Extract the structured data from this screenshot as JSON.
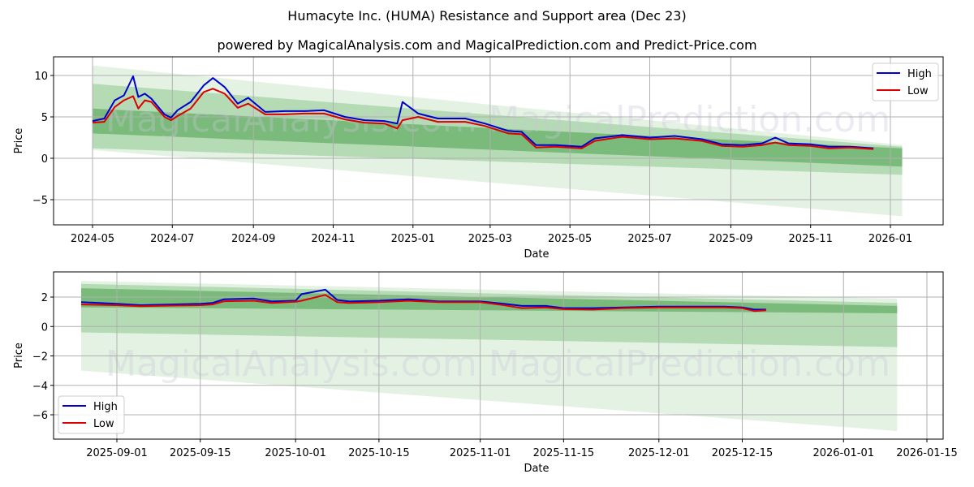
{
  "title": "Humacyte Inc. (HUMA) Resistance and Support area (Dec 23)",
  "subtitle": "powered by MagicalAnalysis.com and MagicalPrediction.com and Predict-Price.com",
  "watermarks": [
    "MagicalAnalysis.com",
    "MagicalPrediction.com"
  ],
  "colors": {
    "high": "#0000cc",
    "low": "#dd0000",
    "band_dark": "#4a9e4a",
    "band_mid": "#8cc98c",
    "band_light": "#d2ead2"
  },
  "legend": {
    "high": "High",
    "low": "Low"
  },
  "chart_data": [
    {
      "type": "line",
      "title": "Humacyte Inc. (HUMA) Resistance and Support area (Dec 23)",
      "xlabel": "Date",
      "ylabel": "Price",
      "x_ticks": [
        "2024-05",
        "2024-07",
        "2024-09",
        "2024-11",
        "2025-01",
        "2025-03",
        "2025-05",
        "2025-07",
        "2025-09",
        "2025-11",
        "2026-01"
      ],
      "y_ticks": [
        -5,
        0,
        5,
        10
      ],
      "ylim": [
        -8,
        12.3
      ],
      "grid": true,
      "legend_position": "upper right",
      "series": [
        {
          "name": "High",
          "color": "#0000cc",
          "x": [
            "2024-05-01",
            "2024-05-10",
            "2024-05-18",
            "2024-05-25",
            "2024-06-01",
            "2024-06-05",
            "2024-06-10",
            "2024-06-15",
            "2024-06-25",
            "2024-06-30",
            "2024-07-05",
            "2024-07-15",
            "2024-07-25",
            "2024-08-01",
            "2024-08-10",
            "2024-08-20",
            "2024-08-28",
            "2024-09-10",
            "2024-09-25",
            "2024-10-10",
            "2024-10-25",
            "2024-11-10",
            "2024-11-25",
            "2024-12-10",
            "2024-12-20",
            "2024-12-24",
            "2025-01-05",
            "2025-01-20",
            "2025-02-10",
            "2025-02-25",
            "2025-03-15",
            "2025-03-25",
            "2025-04-05",
            "2025-04-20",
            "2025-05-10",
            "2025-05-20",
            "2025-06-10",
            "2025-07-01",
            "2025-07-20",
            "2025-08-10",
            "2025-08-25",
            "2025-09-10",
            "2025-09-25",
            "2025-10-05",
            "2025-10-15",
            "2025-11-01",
            "2025-11-15",
            "2025-12-01",
            "2025-12-19"
          ],
          "values": [
            4.5,
            4.8,
            7.0,
            7.6,
            9.9,
            7.4,
            7.8,
            7.2,
            5.3,
            4.9,
            5.8,
            6.8,
            8.8,
            9.7,
            8.6,
            6.6,
            7.3,
            5.6,
            5.7,
            5.7,
            5.8,
            5.0,
            4.6,
            4.5,
            4.2,
            6.8,
            5.4,
            4.8,
            4.8,
            4.2,
            3.3,
            3.2,
            1.6,
            1.6,
            1.4,
            2.4,
            2.8,
            2.5,
            2.7,
            2.3,
            1.7,
            1.6,
            1.8,
            2.5,
            1.8,
            1.7,
            1.4,
            1.4,
            1.2
          ]
        },
        {
          "name": "Low",
          "color": "#dd0000",
          "x": [
            "2024-05-01",
            "2024-05-10",
            "2024-05-18",
            "2024-05-25",
            "2024-06-01",
            "2024-06-05",
            "2024-06-10",
            "2024-06-15",
            "2024-06-25",
            "2024-06-30",
            "2024-07-05",
            "2024-07-15",
            "2024-07-25",
            "2024-08-01",
            "2024-08-10",
            "2024-08-20",
            "2024-08-28",
            "2024-09-10",
            "2024-09-25",
            "2024-10-10",
            "2024-10-25",
            "2024-11-10",
            "2024-11-25",
            "2024-12-10",
            "2024-12-20",
            "2024-12-24",
            "2025-01-05",
            "2025-01-20",
            "2025-02-10",
            "2025-02-25",
            "2025-03-15",
            "2025-03-25",
            "2025-04-05",
            "2025-04-20",
            "2025-05-10",
            "2025-05-20",
            "2025-06-10",
            "2025-07-01",
            "2025-07-20",
            "2025-08-10",
            "2025-08-25",
            "2025-09-10",
            "2025-09-25",
            "2025-10-05",
            "2025-10-15",
            "2025-11-01",
            "2025-11-15",
            "2025-12-01",
            "2025-12-19"
          ],
          "values": [
            4.3,
            4.4,
            6.2,
            7.0,
            7.5,
            6.0,
            7.0,
            6.8,
            5.0,
            4.6,
            5.1,
            6.0,
            8.0,
            8.4,
            7.8,
            6.1,
            6.6,
            5.3,
            5.3,
            5.4,
            5.4,
            4.7,
            4.3,
            4.2,
            3.6,
            4.6,
            5.0,
            4.4,
            4.4,
            3.9,
            3.0,
            2.9,
            1.3,
            1.4,
            1.2,
            2.1,
            2.6,
            2.3,
            2.4,
            2.1,
            1.5,
            1.4,
            1.6,
            1.9,
            1.6,
            1.5,
            1.2,
            1.3,
            1.1
          ]
        }
      ],
      "bands": [
        {
          "name": "outer",
          "start_date": "2024-05-01",
          "end_date": "2026-01-10",
          "upper_start": 11.2,
          "upper_end": 1.6,
          "lower_start": 1.0,
          "lower_end": -7.0
        },
        {
          "name": "middle",
          "start_date": "2024-05-01",
          "end_date": "2026-01-10",
          "upper_start": 9.0,
          "upper_end": 1.4,
          "lower_start": 1.2,
          "lower_end": -2.0
        },
        {
          "name": "inner",
          "start_date": "2024-05-01",
          "end_date": "2026-01-10",
          "upper_start": 6.0,
          "upper_end": 1.2,
          "lower_start": 3.0,
          "lower_end": -1.0
        }
      ]
    },
    {
      "type": "line",
      "xlabel": "Date",
      "ylabel": "Price",
      "x_ticks": [
        "2025-09-01",
        "2025-09-15",
        "2025-10-01",
        "2025-10-15",
        "2025-11-01",
        "2025-11-15",
        "2025-12-01",
        "2025-12-15",
        "2026-01-01",
        "2026-01-15"
      ],
      "y_ticks": [
        -6,
        -4,
        -2,
        0,
        2
      ],
      "ylim": [
        -7.6,
        3.7
      ],
      "grid": true,
      "legend_position": "lower left",
      "series": [
        {
          "name": "High",
          "color": "#0000cc",
          "x": [
            "2025-08-26",
            "2025-09-01",
            "2025-09-05",
            "2025-09-10",
            "2025-09-15",
            "2025-09-17",
            "2025-09-19",
            "2025-09-24",
            "2025-09-27",
            "2025-10-01",
            "2025-10-02",
            "2025-10-06",
            "2025-10-08",
            "2025-10-10",
            "2025-10-15",
            "2025-10-20",
            "2025-10-25",
            "2025-11-01",
            "2025-11-05",
            "2025-11-08",
            "2025-11-12",
            "2025-11-15",
            "2025-11-20",
            "2025-11-25",
            "2025-12-01",
            "2025-12-08",
            "2025-12-12",
            "2025-12-15",
            "2025-12-17",
            "2025-12-19"
          ],
          "values": [
            1.65,
            1.55,
            1.45,
            1.5,
            1.55,
            1.6,
            1.85,
            1.9,
            1.7,
            1.75,
            2.2,
            2.5,
            1.8,
            1.7,
            1.75,
            1.85,
            1.7,
            1.7,
            1.55,
            1.4,
            1.4,
            1.25,
            1.25,
            1.3,
            1.35,
            1.35,
            1.35,
            1.3,
            1.15,
            1.15
          ]
        },
        {
          "name": "Low",
          "color": "#dd0000",
          "x": [
            "2025-08-26",
            "2025-09-01",
            "2025-09-05",
            "2025-09-10",
            "2025-09-15",
            "2025-09-17",
            "2025-09-19",
            "2025-09-24",
            "2025-09-27",
            "2025-10-01",
            "2025-10-02",
            "2025-10-06",
            "2025-10-08",
            "2025-10-10",
            "2025-10-15",
            "2025-10-20",
            "2025-10-25",
            "2025-11-01",
            "2025-11-05",
            "2025-11-08",
            "2025-11-12",
            "2025-11-15",
            "2025-11-20",
            "2025-11-25",
            "2025-12-01",
            "2025-12-08",
            "2025-12-12",
            "2025-12-15",
            "2025-12-17",
            "2025-12-19"
          ],
          "values": [
            1.5,
            1.45,
            1.38,
            1.42,
            1.45,
            1.5,
            1.72,
            1.75,
            1.6,
            1.68,
            1.75,
            2.15,
            1.65,
            1.6,
            1.65,
            1.75,
            1.65,
            1.65,
            1.45,
            1.25,
            1.3,
            1.18,
            1.15,
            1.25,
            1.3,
            1.3,
            1.3,
            1.25,
            1.05,
            1.1
          ]
        }
      ],
      "bands": [
        {
          "name": "outer",
          "start_date": "2025-08-26",
          "end_date": "2026-01-10",
          "upper_start": 3.1,
          "upper_end": 1.9,
          "lower_start": -3.0,
          "lower_end": -7.1
        },
        {
          "name": "middle",
          "start_date": "2025-08-26",
          "end_date": "2026-01-10",
          "upper_start": 2.9,
          "upper_end": 1.6,
          "lower_start": -0.4,
          "lower_end": -1.4
        },
        {
          "name": "inner",
          "start_date": "2025-08-26",
          "end_date": "2026-01-10",
          "upper_start": 2.6,
          "upper_end": 1.4,
          "lower_start": 1.3,
          "lower_end": 0.9
        }
      ]
    }
  ]
}
